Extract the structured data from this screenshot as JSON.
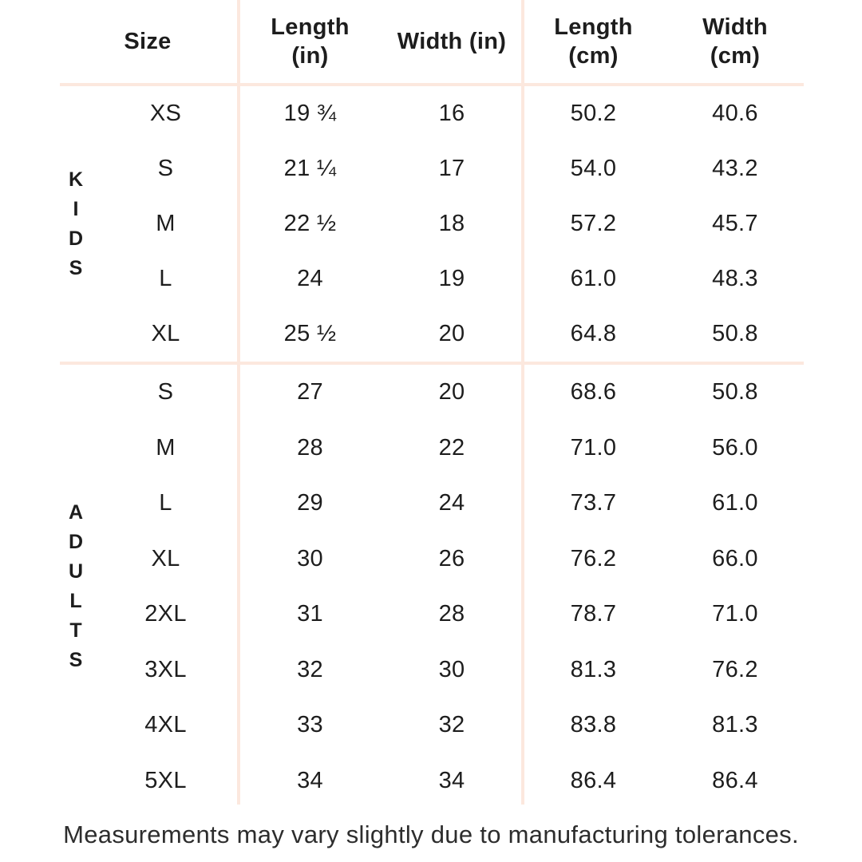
{
  "colors": {
    "rule": "#fce8de",
    "text": "#1d1d1d",
    "footnote": "#2d2d2d"
  },
  "headers": [
    {
      "line1": "Size",
      "line2": ""
    },
    {
      "line1": "Length",
      "line2": "(in)"
    },
    {
      "line1": "Width (in)",
      "line2": ""
    },
    {
      "line1": "Length",
      "line2": "(cm)"
    },
    {
      "line1": "Width",
      "line2": "(cm)"
    }
  ],
  "chart_data": {
    "type": "table",
    "columns": [
      "Size",
      "Length (in)",
      "Width (in)",
      "Length (cm)",
      "Width (cm)"
    ],
    "row_groups": [
      {
        "group": "KIDS",
        "rows": [
          [
            "XS",
            "19 ¾",
            "16",
            "50.2",
            "40.6"
          ],
          [
            "S",
            "21 ¼",
            "17",
            "54.0",
            "43.2"
          ],
          [
            "M",
            "22 ½",
            "18",
            "57.2",
            "45.7"
          ],
          [
            "L",
            "24",
            "19",
            "61.0",
            "48.3"
          ],
          [
            "XL",
            "25 ½",
            "20",
            "64.8",
            "50.8"
          ]
        ]
      },
      {
        "group": "ADULTS",
        "rows": [
          [
            "S",
            "27",
            "20",
            "68.6",
            "50.8"
          ],
          [
            "M",
            "28",
            "22",
            "71.0",
            "56.0"
          ],
          [
            "L",
            "29",
            "24",
            "73.7",
            "61.0"
          ],
          [
            "XL",
            "30",
            "26",
            "76.2",
            "66.0"
          ],
          [
            "2XL",
            "31",
            "28",
            "78.7",
            "71.0"
          ],
          [
            "3XL",
            "32",
            "30",
            "81.3",
            "76.2"
          ],
          [
            "4XL",
            "33",
            "32",
            "83.8",
            "81.3"
          ],
          [
            "5XL",
            "34",
            "34",
            "86.4",
            "86.4"
          ]
        ]
      }
    ],
    "footnote": "Measurements may vary slightly due to manufacturing tolerances."
  }
}
